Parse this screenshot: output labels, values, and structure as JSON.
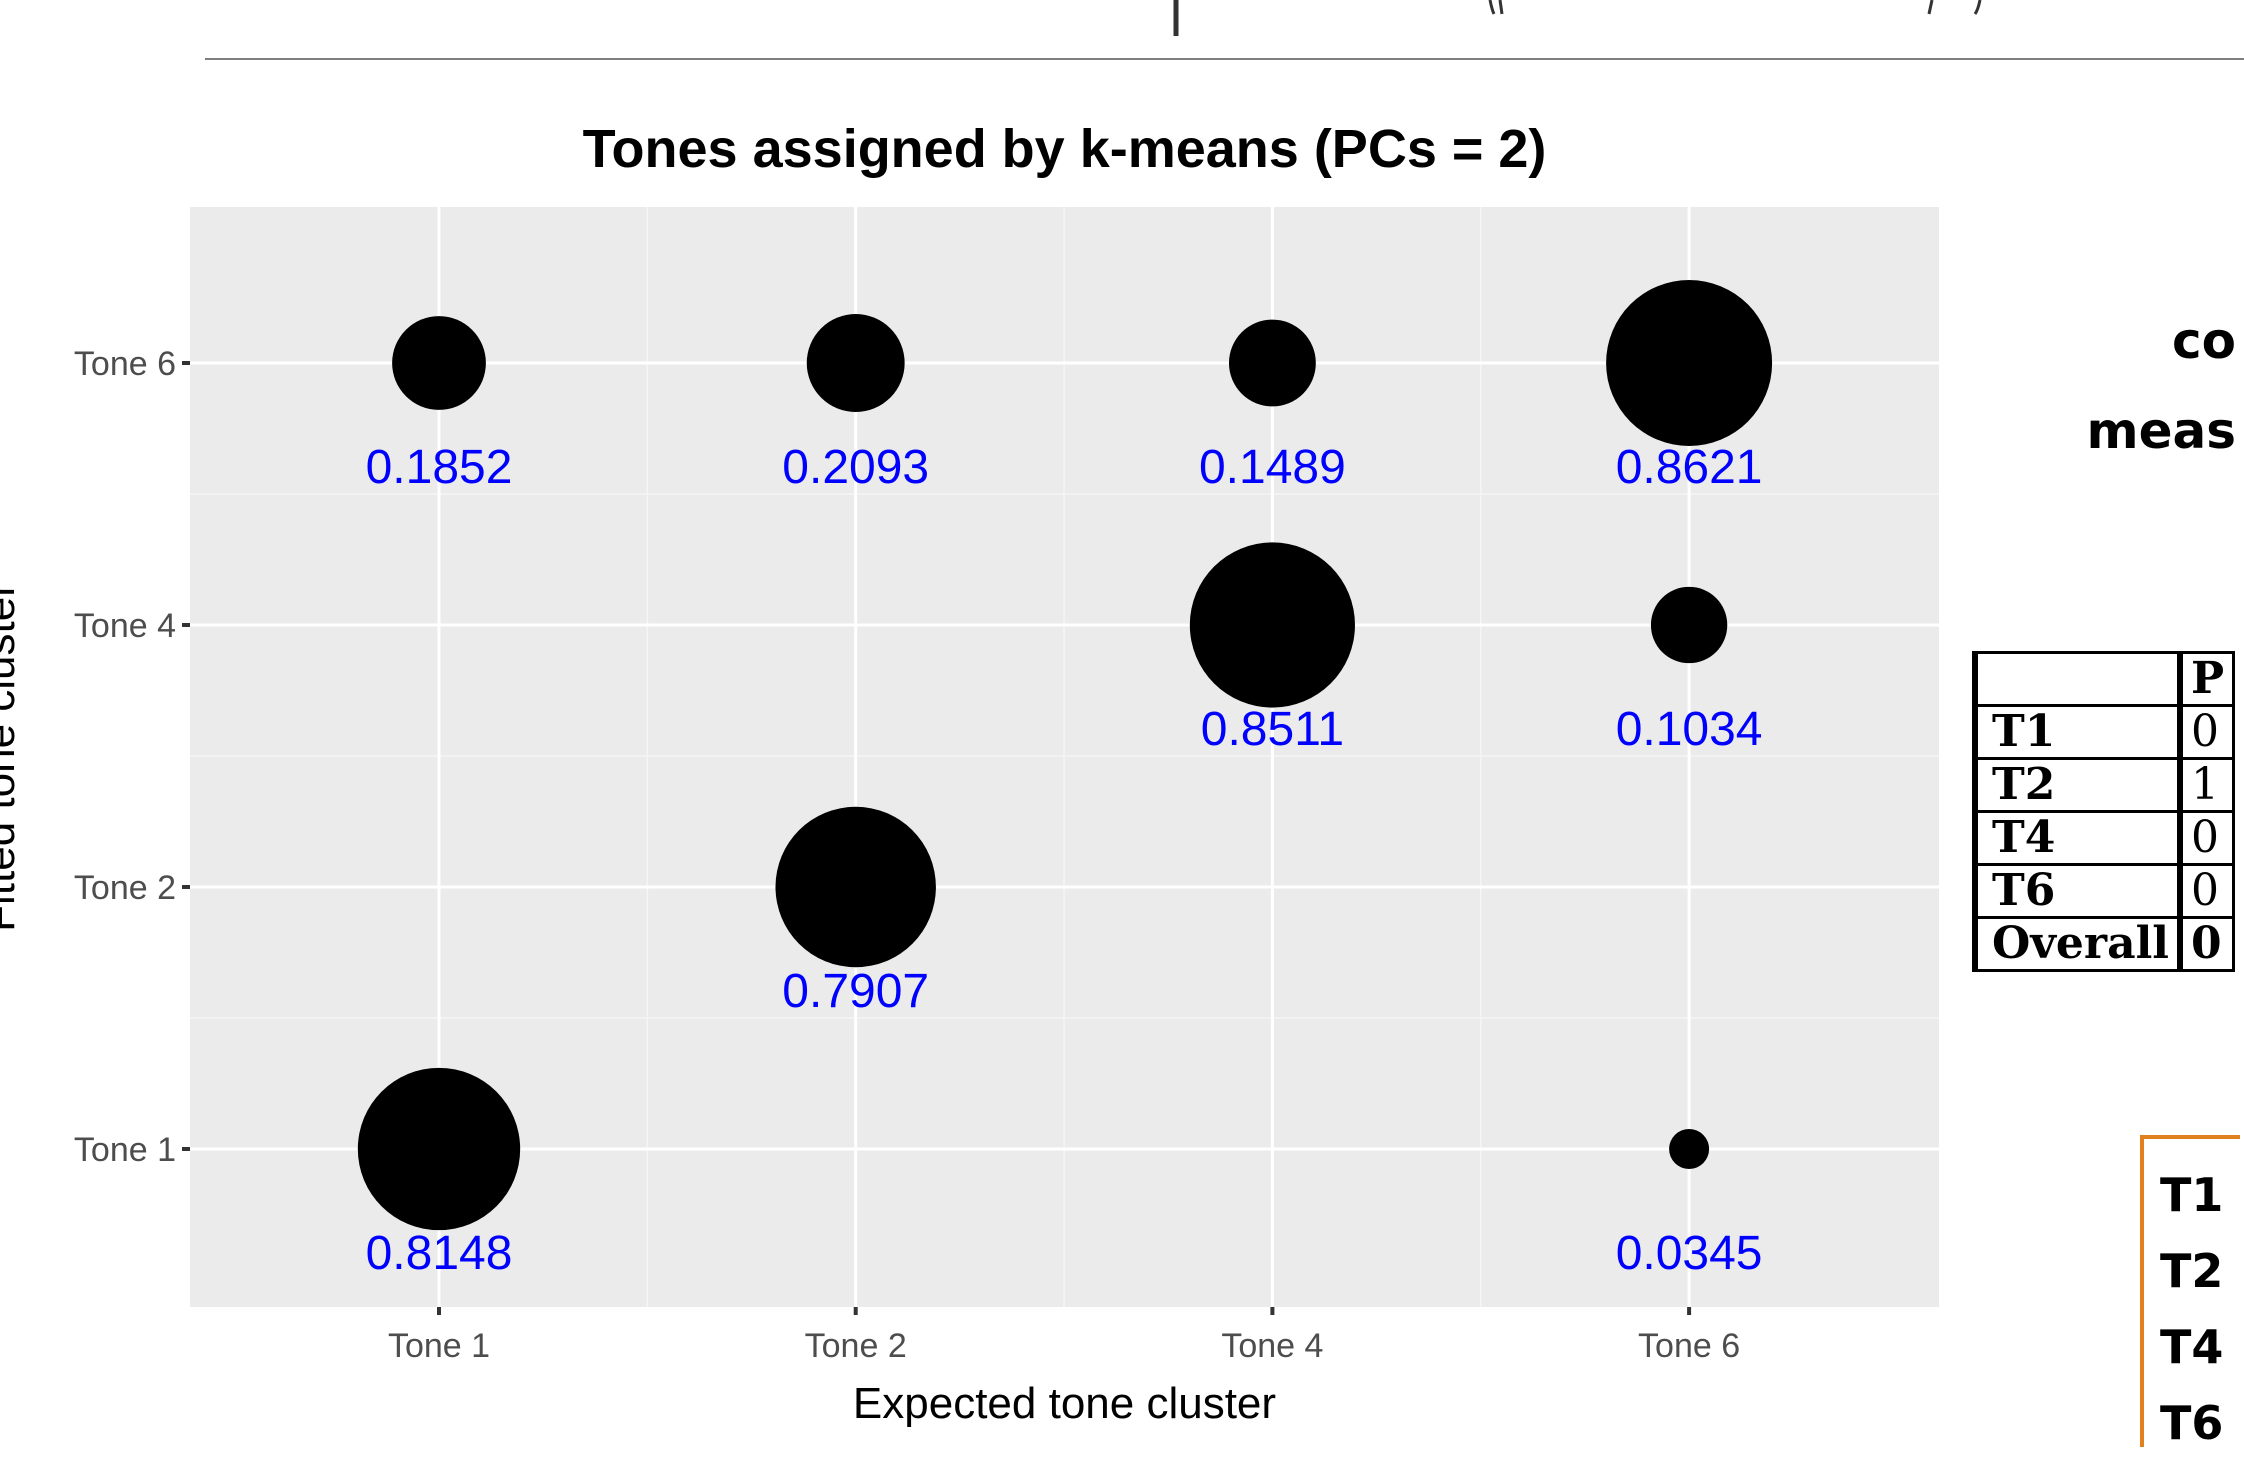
{
  "chart_data": {
    "type": "scatter",
    "title": "Tones assigned by k-means (PCs = 2)",
    "xlabel": "Expected tone cluster",
    "ylabel": "Fitted tone cluster",
    "x_categories": [
      "Tone 1",
      "Tone 2",
      "Tone 4",
      "Tone 6"
    ],
    "y_categories": [
      "Tone 1",
      "Tone 2",
      "Tone 4",
      "Tone 6"
    ],
    "grid": true,
    "points": [
      {
        "x": "Tone 1",
        "y": "Tone 6",
        "value": "0.1852"
      },
      {
        "x": "Tone 2",
        "y": "Tone 6",
        "value": "0.2093"
      },
      {
        "x": "Tone 4",
        "y": "Tone 6",
        "value": "0.1489"
      },
      {
        "x": "Tone 6",
        "y": "Tone 6",
        "value": "0.8621"
      },
      {
        "x": "Tone 4",
        "y": "Tone 4",
        "value": "0.8511"
      },
      {
        "x": "Tone 6",
        "y": "Tone 4",
        "value": "0.1034"
      },
      {
        "x": "Tone 2",
        "y": "Tone 2",
        "value": "0.7907"
      },
      {
        "x": "Tone 1",
        "y": "Tone 1",
        "value": "0.8148"
      },
      {
        "x": "Tone 6",
        "y": "Tone 1",
        "value": "0.0345"
      }
    ],
    "colors": {
      "panel": "#ebebeb",
      "grid": "#ffffff",
      "point": "#000000",
      "label": "#0000ff"
    }
  },
  "side": {
    "heading_lines": [
      "co",
      "meas"
    ],
    "table": {
      "header": [
        "",
        "P"
      ],
      "rows": [
        [
          "T1",
          "0"
        ],
        [
          "T2",
          "1"
        ],
        [
          "T4",
          "0"
        ],
        [
          "T6",
          "0"
        ],
        [
          "Overall",
          "0"
        ]
      ]
    },
    "box_lines": [
      "T1",
      "T2",
      "T4",
      "T6"
    ],
    "box_color": "#e0801e"
  }
}
